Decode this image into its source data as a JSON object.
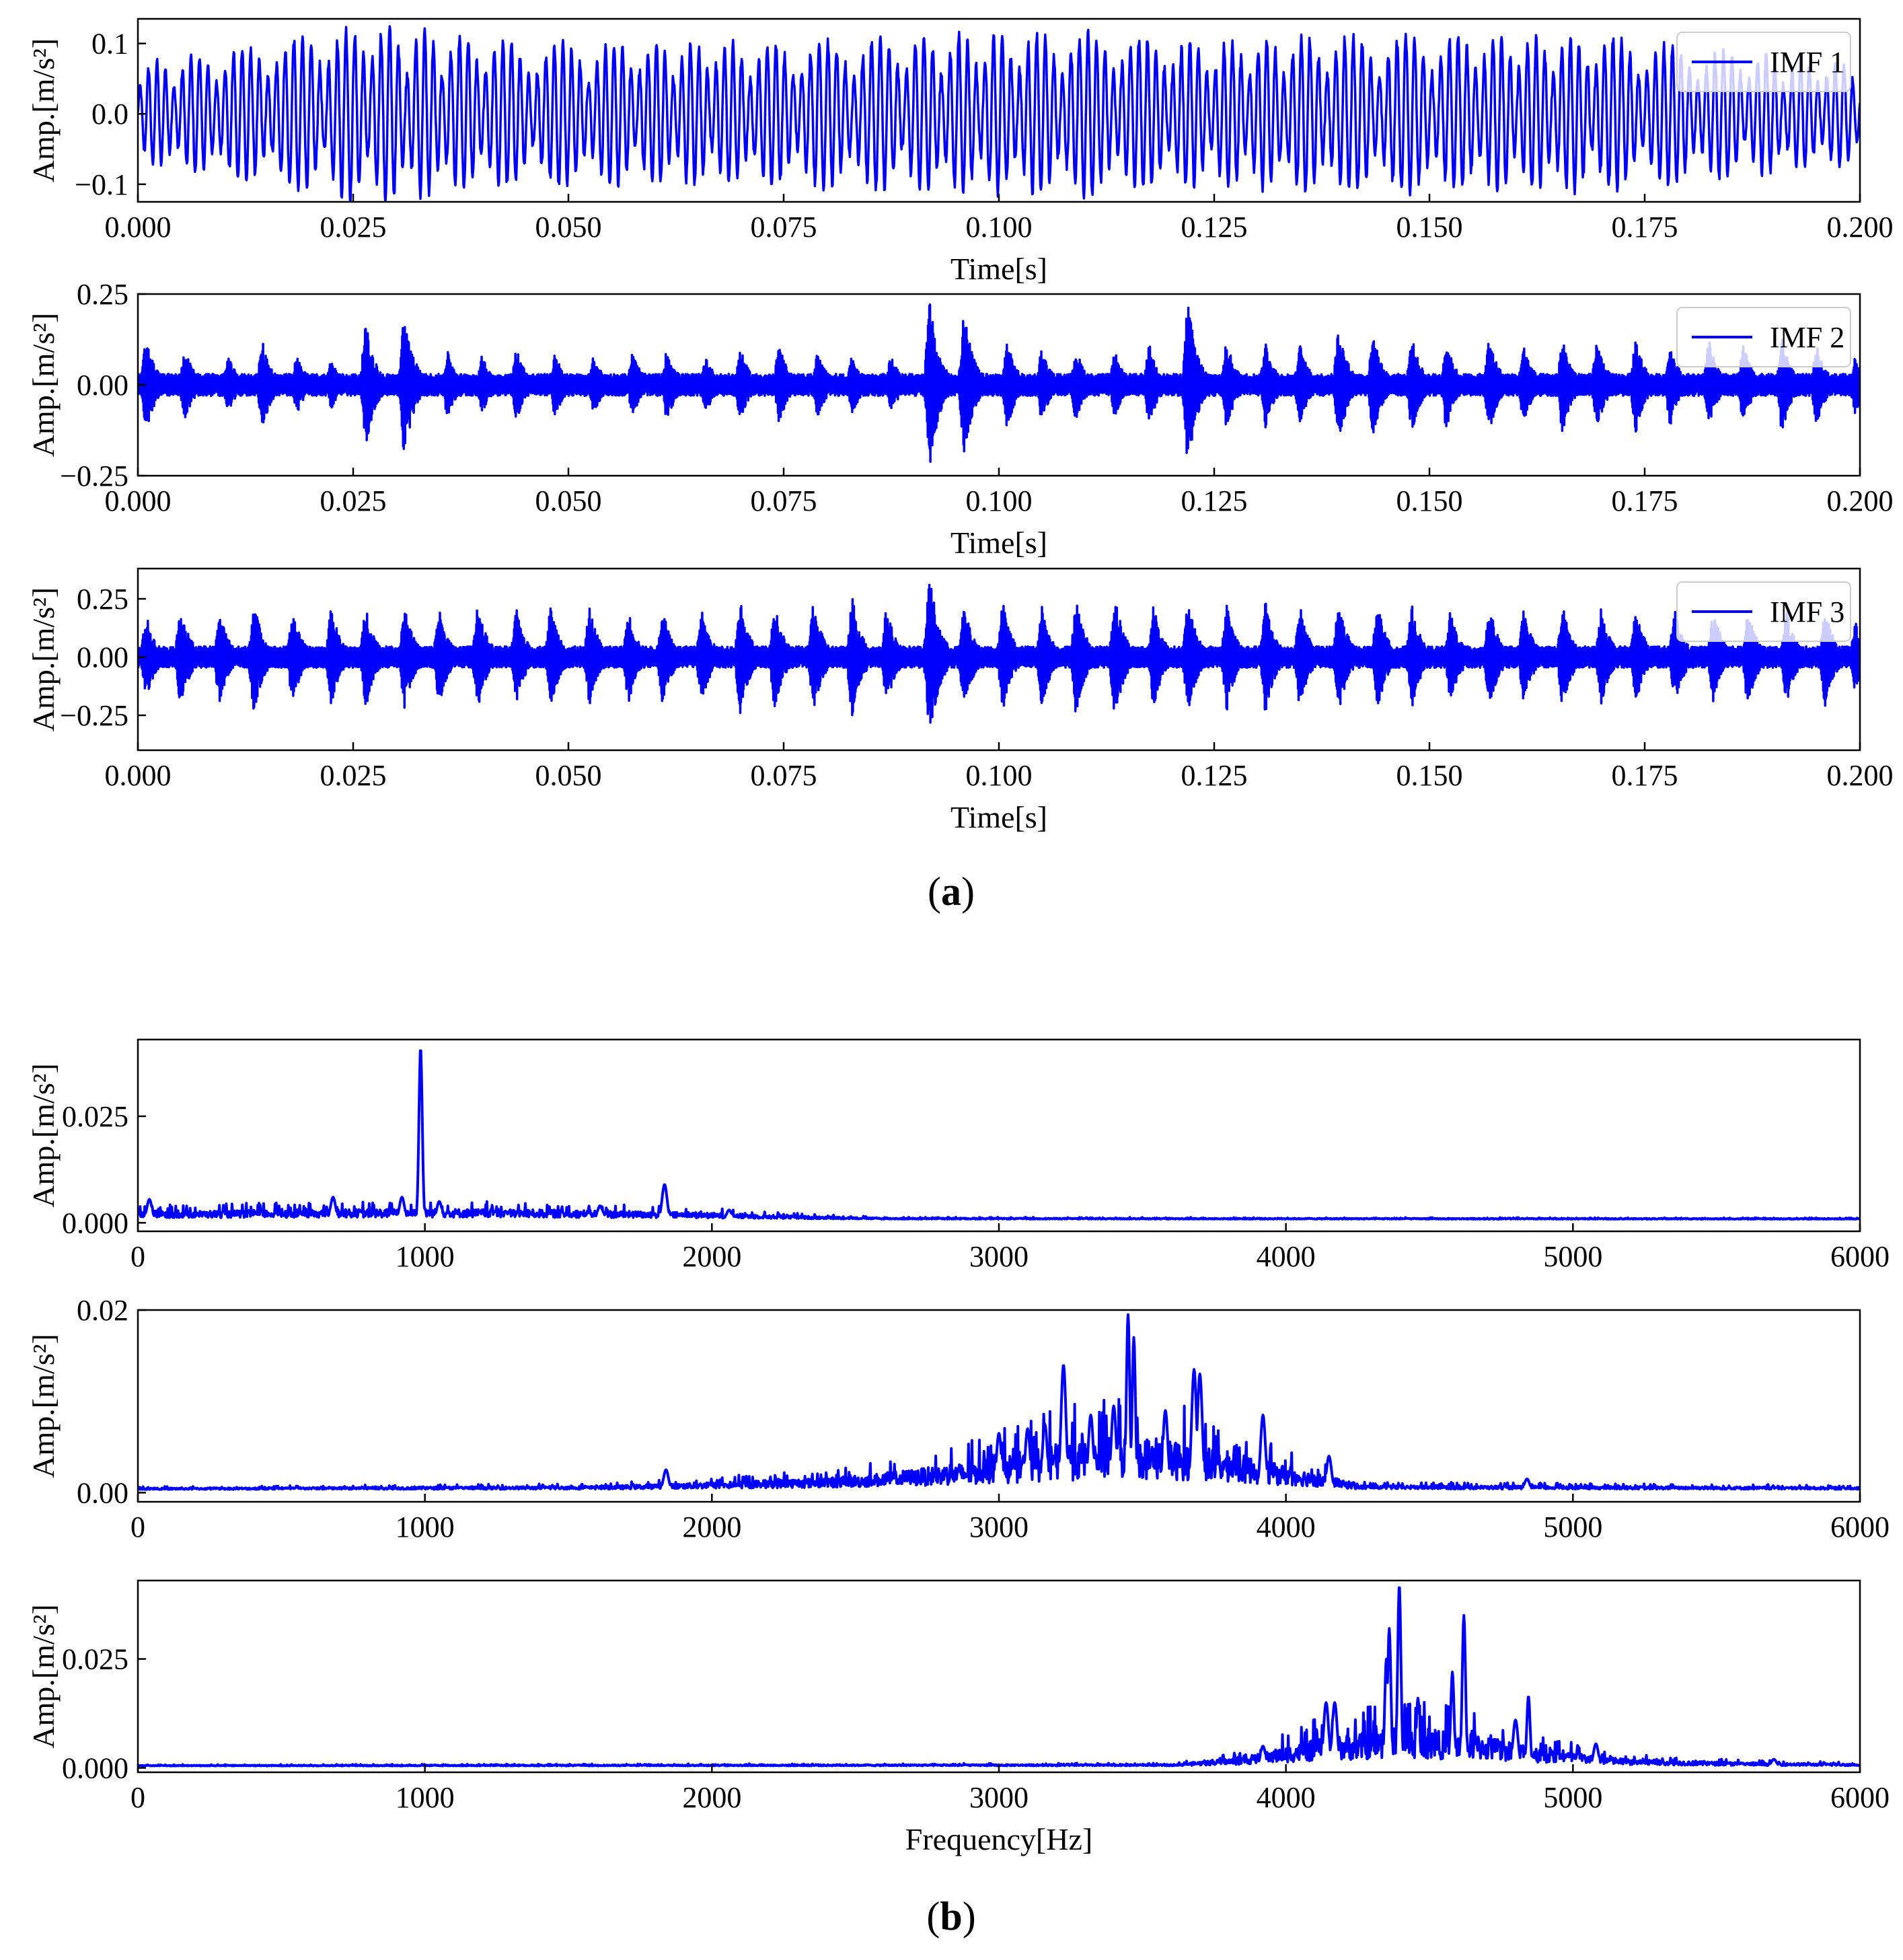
{
  "figure": {
    "label_a": "(a)",
    "label_a_letter": "a",
    "label_b": "(b)",
    "label_b_letter": "b",
    "line_color": "#0000ff"
  },
  "chart_data": [
    {
      "type": "line",
      "group": "a",
      "legend": "IMF 1",
      "legend_position": "top-right",
      "xlabel": "Time[s]",
      "ylabel": "Amp.[m/s²]",
      "xlim": [
        0,
        0.2
      ],
      "ylim": [
        -0.125,
        0.135
      ],
      "xticks": [
        "0.000",
        "0.025",
        "0.050",
        "0.075",
        "0.100",
        "0.125",
        "0.150",
        "0.175",
        "0.200"
      ],
      "xtick_values": [
        0,
        0.025,
        0.05,
        0.075,
        0.1,
        0.125,
        0.15,
        0.175,
        0.2
      ],
      "yticks": [
        "0.1",
        "0.0",
        "−0.1"
      ],
      "ytick_values": [
        0.1,
        0.0,
        -0.1
      ],
      "envelope": {
        "x": [
          0.0,
          0.027,
          0.044,
          0.061,
          0.074,
          0.092,
          0.111,
          0.124,
          0.136,
          0.141,
          0.168,
          0.2
        ],
        "amplitude": [
          0.07,
          0.125,
          0.1,
          0.1,
          0.1,
          0.11,
          0.115,
          0.1,
          0.11,
          0.11,
          0.11,
          0.07
        ]
      },
      "tone_hz": 1000
    },
    {
      "type": "line",
      "group": "a",
      "legend": "IMF 2",
      "legend_position": "top-right",
      "xlabel": "Time[s]",
      "ylabel": "Amp.[m/s²]",
      "xlim": [
        0,
        0.2
      ],
      "ylim": [
        -0.25,
        0.25
      ],
      "xticks": [
        "0.000",
        "0.025",
        "0.050",
        "0.075",
        "0.100",
        "0.125",
        "0.150",
        "0.175",
        "0.200"
      ],
      "xtick_values": [
        0,
        0.025,
        0.05,
        0.075,
        0.1,
        0.125,
        0.15,
        0.175,
        0.2
      ],
      "yticks": [
        "0.25",
        "0.00",
        "−0.25"
      ],
      "ytick_values": [
        0.25,
        0.0,
        -0.25
      ],
      "burst_times": [
        0.001,
        0.0055,
        0.0105,
        0.0145,
        0.0185,
        0.0225,
        0.0265,
        0.031,
        0.036,
        0.04,
        0.044,
        0.0485,
        0.053,
        0.0575,
        0.0615,
        0.066,
        0.07,
        0.0745,
        0.079,
        0.083,
        0.0875,
        0.092,
        0.096,
        0.101,
        0.105,
        0.109,
        0.1135,
        0.1175,
        0.122,
        0.1265,
        0.131,
        0.135,
        0.1395,
        0.1435,
        0.148,
        0.152,
        0.157,
        0.161,
        0.1655,
        0.1695,
        0.174,
        0.178,
        0.1825,
        0.1865,
        0.191,
        0.195,
        0.1995
      ],
      "burst_amplitudes": [
        0.13,
        0.1,
        0.08,
        0.12,
        0.08,
        0.07,
        0.17,
        0.2,
        0.09,
        0.08,
        0.1,
        0.09,
        0.08,
        0.09,
        0.1,
        0.08,
        0.1,
        0.11,
        0.09,
        0.08,
        0.08,
        0.23,
        0.2,
        0.12,
        0.1,
        0.1,
        0.09,
        0.11,
        0.23,
        0.12,
        0.12,
        0.11,
        0.16,
        0.14,
        0.13,
        0.12,
        0.13,
        0.11,
        0.13,
        0.12,
        0.13,
        0.11,
        0.12,
        0.11,
        0.13,
        0.11,
        0.08
      ]
    },
    {
      "type": "line",
      "group": "a",
      "legend": "IMF 3",
      "legend_position": "top-right",
      "xlabel": "Time[s]",
      "ylabel": "Amp.[m/s²]",
      "xlim": [
        0,
        0.2
      ],
      "ylim": [
        -0.4,
        0.38
      ],
      "xticks": [
        "0.000",
        "0.025",
        "0.050",
        "0.075",
        "0.100",
        "0.125",
        "0.150",
        "0.175",
        "0.200"
      ],
      "xtick_values": [
        0,
        0.025,
        0.05,
        0.075,
        0.1,
        0.125,
        0.15,
        0.175,
        0.2
      ],
      "yticks": [
        "0.25",
        "0.00",
        "−0.25"
      ],
      "ytick_values": [
        0.25,
        0.0,
        -0.25
      ],
      "burst_times": [
        0.001,
        0.005,
        0.0095,
        0.0135,
        0.018,
        0.0225,
        0.0265,
        0.031,
        0.035,
        0.0395,
        0.044,
        0.048,
        0.0525,
        0.057,
        0.061,
        0.0655,
        0.07,
        0.074,
        0.0785,
        0.083,
        0.087,
        0.092,
        0.096,
        0.1005,
        0.105,
        0.109,
        0.1135,
        0.118,
        0.122,
        0.1265,
        0.131,
        0.135,
        0.1395,
        0.144,
        0.148,
        0.1525,
        0.157,
        0.161,
        0.1655,
        0.17,
        0.174,
        0.1785,
        0.183,
        0.187,
        0.1915,
        0.196,
        0.1995
      ],
      "burst_amplitudes": [
        0.18,
        0.22,
        0.2,
        0.24,
        0.2,
        0.21,
        0.22,
        0.22,
        0.21,
        0.23,
        0.2,
        0.22,
        0.21,
        0.2,
        0.21,
        0.2,
        0.25,
        0.22,
        0.24,
        0.26,
        0.21,
        0.36,
        0.22,
        0.23,
        0.22,
        0.25,
        0.27,
        0.22,
        0.24,
        0.23,
        0.24,
        0.22,
        0.24,
        0.23,
        0.22,
        0.2,
        0.22,
        0.2,
        0.22,
        0.21,
        0.2,
        0.21,
        0.2,
        0.21,
        0.2,
        0.21,
        0.15
      ]
    },
    {
      "type": "line",
      "group": "b",
      "xlabel": "",
      "ylabel": "Amp.[m/s²]",
      "xlim": [
        0,
        6000
      ],
      "ylim": [
        -0.002,
        0.043
      ],
      "xticks": [
        "0",
        "1000",
        "2000",
        "3000",
        "4000",
        "5000",
        "6000"
      ],
      "xtick_values": [
        0,
        1000,
        2000,
        3000,
        4000,
        5000,
        6000
      ],
      "yticks": [
        "0.025",
        "0.000"
      ],
      "ytick_values": [
        0.025,
        0.0
      ],
      "baseline": 0.0008,
      "noise_band": {
        "x": [
          0,
          500,
          1000,
          1500,
          2000,
          2300,
          2600,
          6000
        ],
        "level": [
          0.0018,
          0.0022,
          0.0025,
          0.0022,
          0.0015,
          0.0008,
          0.0003,
          0.0002
        ]
      },
      "peaks": [
        {
          "freq": 40,
          "value": 0.0055
        },
        {
          "freq": 680,
          "value": 0.006
        },
        {
          "freq": 920,
          "value": 0.006
        },
        {
          "freq": 985,
          "value": 0.041
        },
        {
          "freq": 1050,
          "value": 0.005
        },
        {
          "freq": 1610,
          "value": 0.004
        },
        {
          "freq": 1835,
          "value": 0.009
        },
        {
          "freq": 2060,
          "value": 0.003
        }
      ]
    },
    {
      "type": "line",
      "group": "b",
      "xlabel": "",
      "ylabel": "Amp.[m/s²]",
      "xlim": [
        0,
        6000
      ],
      "ylim": [
        -0.001,
        0.02
      ],
      "xticks": [
        "0",
        "1000",
        "2000",
        "3000",
        "4000",
        "5000",
        "6000"
      ],
      "xtick_values": [
        0,
        1000,
        2000,
        3000,
        4000,
        5000,
        6000
      ],
      "yticks": [
        "0.02",
        "0.00"
      ],
      "ytick_values": [
        0.02,
        0.0
      ],
      "baseline": 0.0003,
      "noise_band": {
        "x": [
          0,
          1600,
          2000,
          2500,
          2900,
          3200,
          3450,
          3700,
          3950,
          4150,
          4250,
          6000
        ],
        "level": [
          0.0002,
          0.0004,
          0.0008,
          0.0015,
          0.003,
          0.005,
          0.006,
          0.005,
          0.003,
          0.0015,
          0.0005,
          0.0003
        ]
      },
      "peaks": [
        {
          "freq": 1840,
          "value": 0.0025
        },
        {
          "freq": 3000,
          "value": 0.0065
        },
        {
          "freq": 3100,
          "value": 0.007
        },
        {
          "freq": 3160,
          "value": 0.0075
        },
        {
          "freq": 3225,
          "value": 0.014
        },
        {
          "freq": 3320,
          "value": 0.0085
        },
        {
          "freq": 3400,
          "value": 0.0095
        },
        {
          "freq": 3450,
          "value": 0.0195
        },
        {
          "freq": 3470,
          "value": 0.017
        },
        {
          "freq": 3580,
          "value": 0.009
        },
        {
          "freq": 3680,
          "value": 0.0135
        },
        {
          "freq": 3700,
          "value": 0.013
        },
        {
          "freq": 3920,
          "value": 0.0085
        },
        {
          "freq": 4150,
          "value": 0.004
        },
        {
          "freq": 4840,
          "value": 0.0015
        }
      ]
    },
    {
      "type": "line",
      "group": "b",
      "xlabel": "Frequency[Hz]",
      "ylabel": "Amp.[m/s²]",
      "xlim": [
        0,
        6000
      ],
      "ylim": [
        -0.001,
        0.043
      ],
      "xticks": [
        "0",
        "1000",
        "2000",
        "3000",
        "4000",
        "5000",
        "6000"
      ],
      "xtick_values": [
        0,
        1000,
        2000,
        3000,
        4000,
        5000,
        6000
      ],
      "yticks": [
        "0.025",
        "0.000"
      ],
      "ytick_values": [
        0.025,
        0.0
      ],
      "baseline": 0.0004,
      "noise_band": {
        "x": [
          0,
          3600,
          3850,
          4100,
          4400,
          4700,
          4900,
          5200,
          5600,
          6000
        ],
        "level": [
          0.0002,
          0.0004,
          0.002,
          0.006,
          0.009,
          0.007,
          0.004,
          0.0015,
          0.0008,
          0.0005
        ]
      },
      "peaks": [
        {
          "freq": 3920,
          "value": 0.005
        },
        {
          "freq": 4140,
          "value": 0.015
        },
        {
          "freq": 4170,
          "value": 0.015
        },
        {
          "freq": 4350,
          "value": 0.025
        },
        {
          "freq": 4360,
          "value": 0.032
        },
        {
          "freq": 4395,
          "value": 0.042
        },
        {
          "freq": 4460,
          "value": 0.016
        },
        {
          "freq": 4580,
          "value": 0.022
        },
        {
          "freq": 4620,
          "value": 0.035
        },
        {
          "freq": 4800,
          "value": 0.011
        },
        {
          "freq": 4845,
          "value": 0.0165
        },
        {
          "freq": 5080,
          "value": 0.0055
        },
        {
          "freq": 5700,
          "value": 0.002
        }
      ]
    }
  ]
}
